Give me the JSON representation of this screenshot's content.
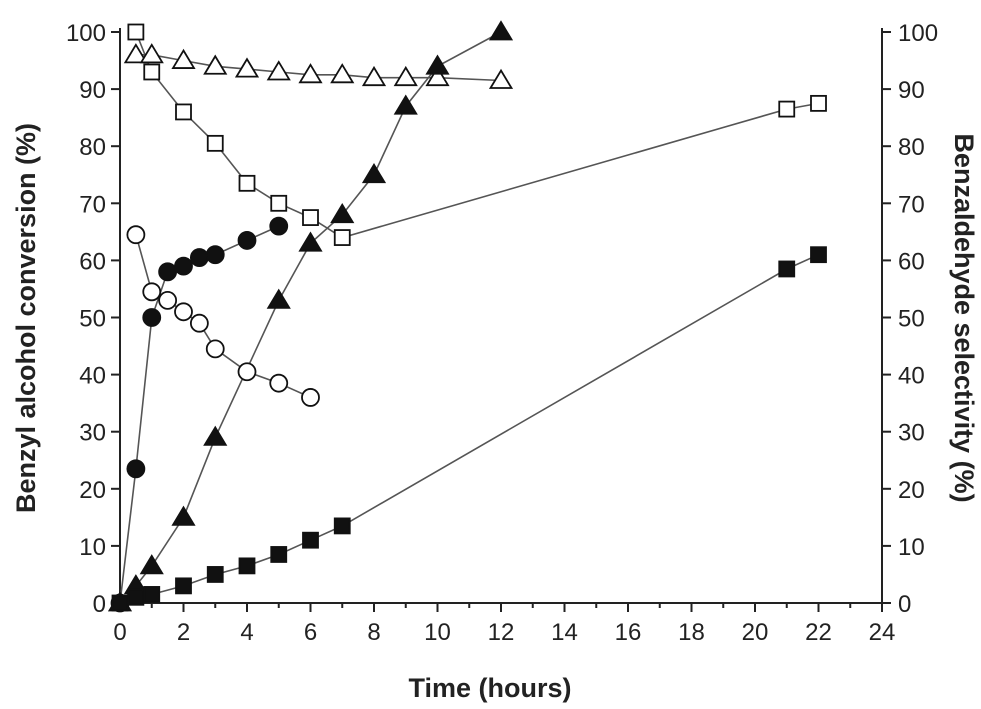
{
  "chart_data": {
    "type": "scatter",
    "title": "",
    "xlabel": "Time (hours)",
    "ylabel": "Benzyl alcohol conversion (%)",
    "y2label": "Benzaldehyde selectivity (%)",
    "xlim": [
      0,
      24
    ],
    "ylim": [
      0,
      100
    ],
    "y2lim": [
      0,
      100
    ],
    "x_ticks": [
      0,
      2,
      4,
      6,
      8,
      10,
      12,
      14,
      16,
      18,
      20,
      22,
      24
    ],
    "y_ticks": [
      0,
      10,
      20,
      30,
      40,
      50,
      60,
      70,
      80,
      90,
      100
    ],
    "y2_ticks": [
      0,
      10,
      20,
      30,
      40,
      50,
      60,
      70,
      80,
      90,
      100
    ],
    "grid": false,
    "legend": "none",
    "series": [
      {
        "marker": "triangle",
        "fill": "open",
        "axis": "right",
        "x": [
          0.5,
          1,
          2,
          3,
          4,
          5,
          6,
          7,
          8,
          9,
          10,
          12
        ],
        "y": [
          96,
          96,
          95,
          94,
          93.5,
          93,
          92.5,
          92.5,
          92,
          92,
          92,
          91.5
        ]
      },
      {
        "marker": "square",
        "fill": "open",
        "axis": "right",
        "x": [
          0.5,
          1,
          2,
          3,
          4,
          5,
          6,
          7,
          21,
          22
        ],
        "y": [
          100,
          93,
          86,
          80.5,
          73.5,
          70,
          67.5,
          64,
          86.5,
          87.5
        ]
      },
      {
        "marker": "circle",
        "fill": "open",
        "axis": "right",
        "x": [
          0.5,
          1,
          1.5,
          2,
          2.5,
          3,
          4,
          5,
          6
        ],
        "y": [
          64.5,
          54.5,
          53,
          51,
          49,
          44.5,
          40.5,
          38.5,
          36
        ]
      },
      {
        "marker": "circle",
        "fill": "filled",
        "axis": "left",
        "x": [
          0,
          0.5,
          1,
          1.5,
          2,
          2.5,
          3,
          4,
          5
        ],
        "y": [
          0,
          23.5,
          50,
          58,
          59,
          60.5,
          61,
          63.5,
          66
        ]
      },
      {
        "marker": "triangle",
        "fill": "filled",
        "axis": "left",
        "x": [
          0,
          0.5,
          1,
          2,
          3,
          5,
          6,
          7,
          8,
          9,
          10,
          12
        ],
        "y": [
          0,
          3,
          6.5,
          15,
          29,
          53,
          63,
          68,
          75,
          87,
          94,
          100
        ]
      },
      {
        "marker": "square",
        "fill": "filled",
        "axis": "left",
        "x": [
          0,
          0.5,
          1,
          2,
          3,
          4,
          5,
          6,
          7,
          21,
          22
        ],
        "y": [
          0,
          1,
          1.5,
          3,
          5,
          6.5,
          8.5,
          11,
          13.5,
          58.5,
          61
        ]
      }
    ]
  }
}
